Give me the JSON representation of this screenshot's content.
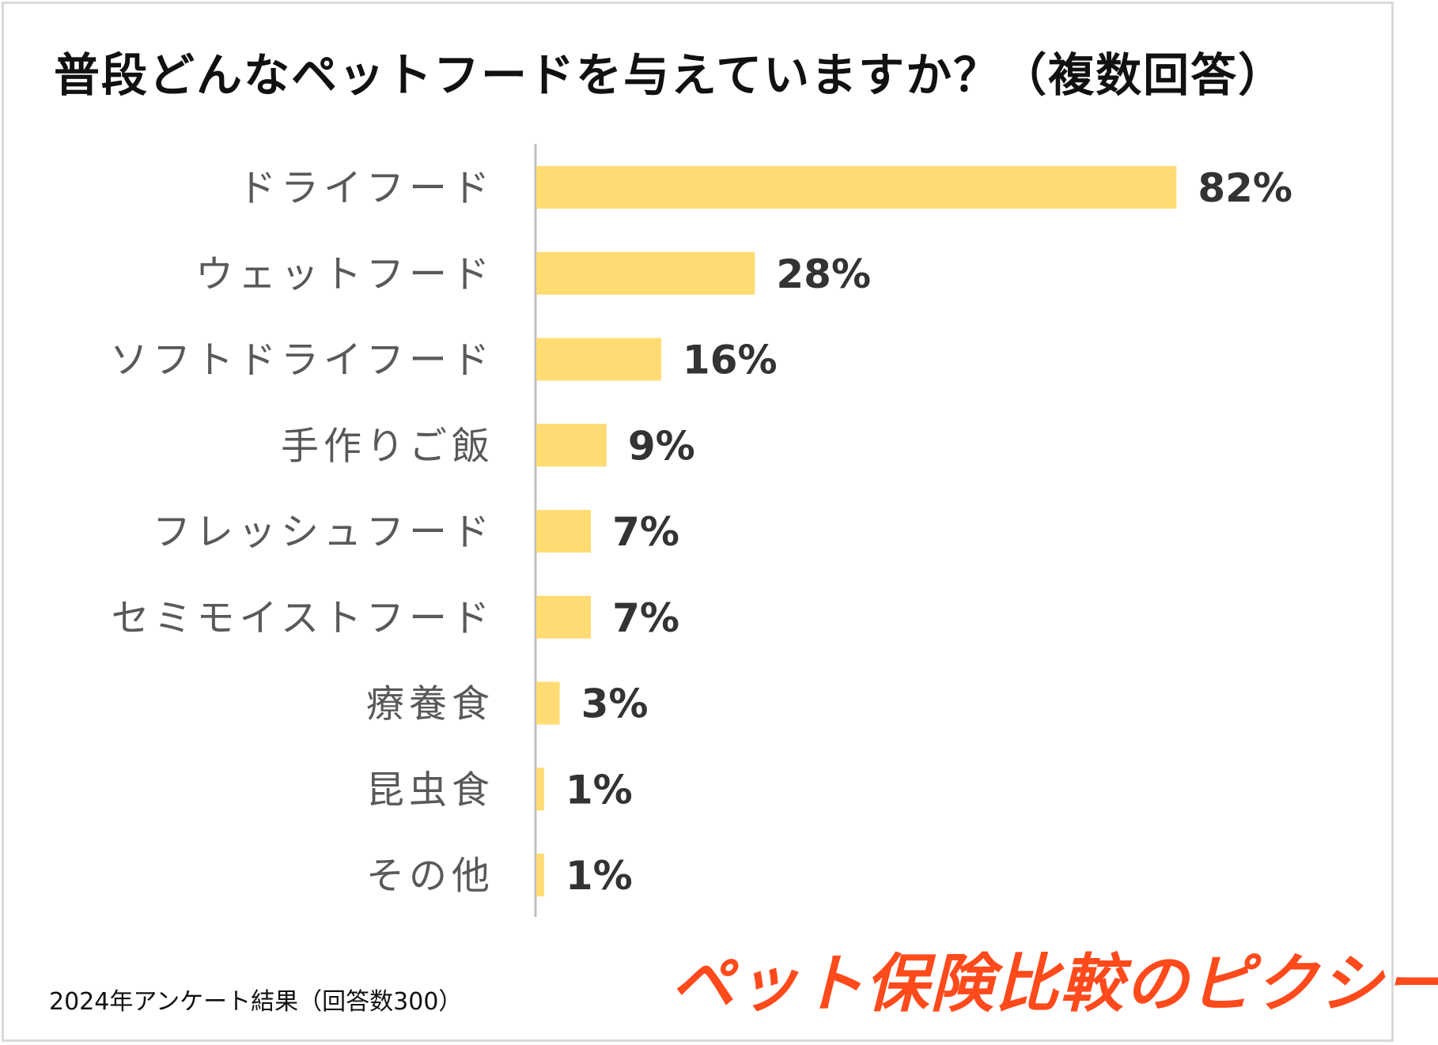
{
  "header": {
    "title": "普段どんなペットフードを与えていますか？（複数回答）"
  },
  "chart_data": {
    "type": "bar",
    "orientation": "horizontal",
    "title": "普段どんなペットフードを与えていますか？（複数回答）",
    "categories": [
      "ドライフード",
      "ウェットフード",
      "ソフトドライフード",
      "手作りご飯",
      "フレッシュフード",
      "セミモイストフード",
      "療養食",
      "昆虫食",
      "その他"
    ],
    "values": [
      82,
      28,
      16,
      9,
      7,
      7,
      3,
      1,
      1
    ],
    "value_labels": [
      "82%",
      "28%",
      "16%",
      "9%",
      "7%",
      "7%",
      "3%",
      "1%",
      "1%"
    ],
    "unit": "%",
    "xlim": [
      0,
      100
    ],
    "bar_color": "#ffdc73",
    "axis_color": "#bfbfbf",
    "xlabel": "",
    "ylabel": "",
    "grid": false,
    "legend": "none"
  },
  "footer": {
    "note": "2024年アンケート結果（回答数300）",
    "brand": "ペット保険比較のピクシー",
    "brand_color": "#ff4a1c"
  }
}
